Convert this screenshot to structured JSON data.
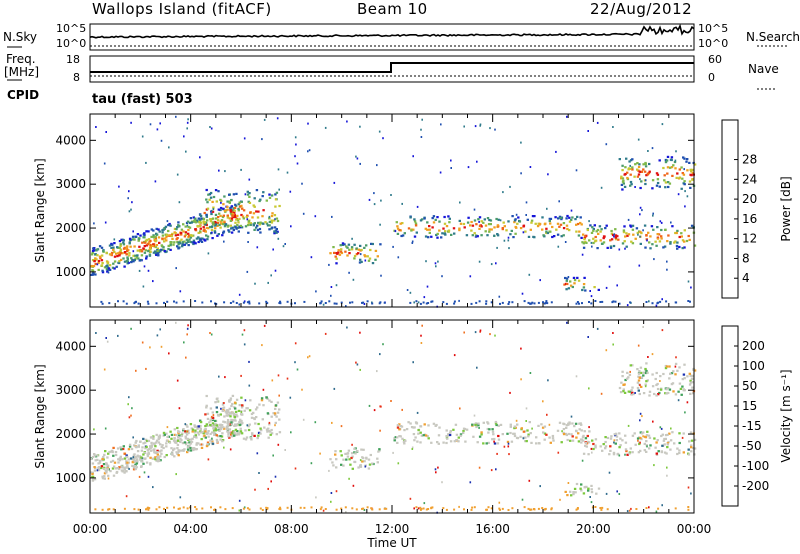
{
  "header": {
    "station": "Wallops Island (fitACF)",
    "beam": "Beam 10",
    "date": "22/Aug/2012"
  },
  "labels": {
    "nsky": "N.Sky",
    "nsearch": "N.Search",
    "freq": "Freq.",
    "freq_unit": "[MHz]",
    "cpid": "CPID",
    "nave": "Nave",
    "tau": "tau (fast) 503",
    "noise_top": "10^5",
    "noise_bottom": "10^0",
    "freq_ticks": [
      "18",
      "8"
    ],
    "nave_ticks": [
      "60",
      "0"
    ]
  },
  "chart_data": [
    {
      "type": "heatmap",
      "title": "",
      "ylabel": "Slant Range [km]",
      "xlabel": "",
      "ylim": [
        200,
        4600
      ],
      "yticks": [
        1000,
        2000,
        3000,
        4000
      ],
      "xlim": [
        0,
        24
      ],
      "colorbar": {
        "label": "Power [dB]",
        "ticks": [
          "4",
          "8",
          "12",
          "16",
          "20",
          "24",
          "28"
        ],
        "colors": [
          "#1515d8",
          "#1f4fb0",
          "#2e7a8a",
          "#4a9a6a",
          "#7fb84a",
          "#c8c832",
          "#f0a020",
          "#f06418",
          "#e01010"
        ]
      },
      "echo_bands": [
        {
          "t0": 0,
          "t1": 6,
          "r0": 950,
          "r1": 2500
        },
        {
          "t0": 4.5,
          "t1": 7.5,
          "r0": 1900,
          "r1": 2900
        },
        {
          "t0": 9.5,
          "t1": 11.5,
          "r0": 1200,
          "r1": 1700
        },
        {
          "t0": 12,
          "t1": 19.5,
          "r0": 1800,
          "r1": 2300
        },
        {
          "t0": 19.5,
          "t1": 24,
          "r0": 1550,
          "r1": 2100
        },
        {
          "t0": 21,
          "t1": 24,
          "r0": 2900,
          "r1": 3650
        },
        {
          "t0": 18.8,
          "t1": 20.2,
          "r0": 600,
          "r1": 900
        }
      ]
    },
    {
      "type": "heatmap",
      "title": "",
      "ylabel": "Slant Range [km]",
      "xlabel": "Time UT",
      "ylim": [
        200,
        4600
      ],
      "yticks": [
        1000,
        2000,
        3000,
        4000
      ],
      "xlim": [
        0,
        24
      ],
      "xticks": [
        "00:00",
        "04:00",
        "08:00",
        "12:00",
        "16:00",
        "20:00",
        "00:00"
      ],
      "colorbar": {
        "label": "Velocity [m s⁻¹]",
        "ticks": [
          "200",
          "100",
          "50",
          "15",
          "-15",
          "-50",
          "-100",
          "-200"
        ],
        "colors": [
          "#1a2fb0",
          "#2e6a8c",
          "#3fa05a",
          "#7cc83c",
          "#c8c8c0",
          "#f0a030",
          "#f07020",
          "#e83018",
          "#e00a0a"
        ]
      },
      "echo_bands": [
        {
          "t0": 0,
          "t1": 6,
          "r0": 950,
          "r1": 2500
        },
        {
          "t0": 4.5,
          "t1": 7.5,
          "r0": 1900,
          "r1": 2900
        },
        {
          "t0": 9.5,
          "t1": 11.5,
          "r0": 1200,
          "r1": 1700
        },
        {
          "t0": 12,
          "t1": 19.5,
          "r0": 1800,
          "r1": 2300
        },
        {
          "t0": 19.5,
          "t1": 24,
          "r0": 1550,
          "r1": 2100
        },
        {
          "t0": 21,
          "t1": 24,
          "r0": 2900,
          "r1": 3650
        },
        {
          "t0": 18.8,
          "t1": 20.2,
          "r0": 600,
          "r1": 900
        }
      ]
    }
  ]
}
